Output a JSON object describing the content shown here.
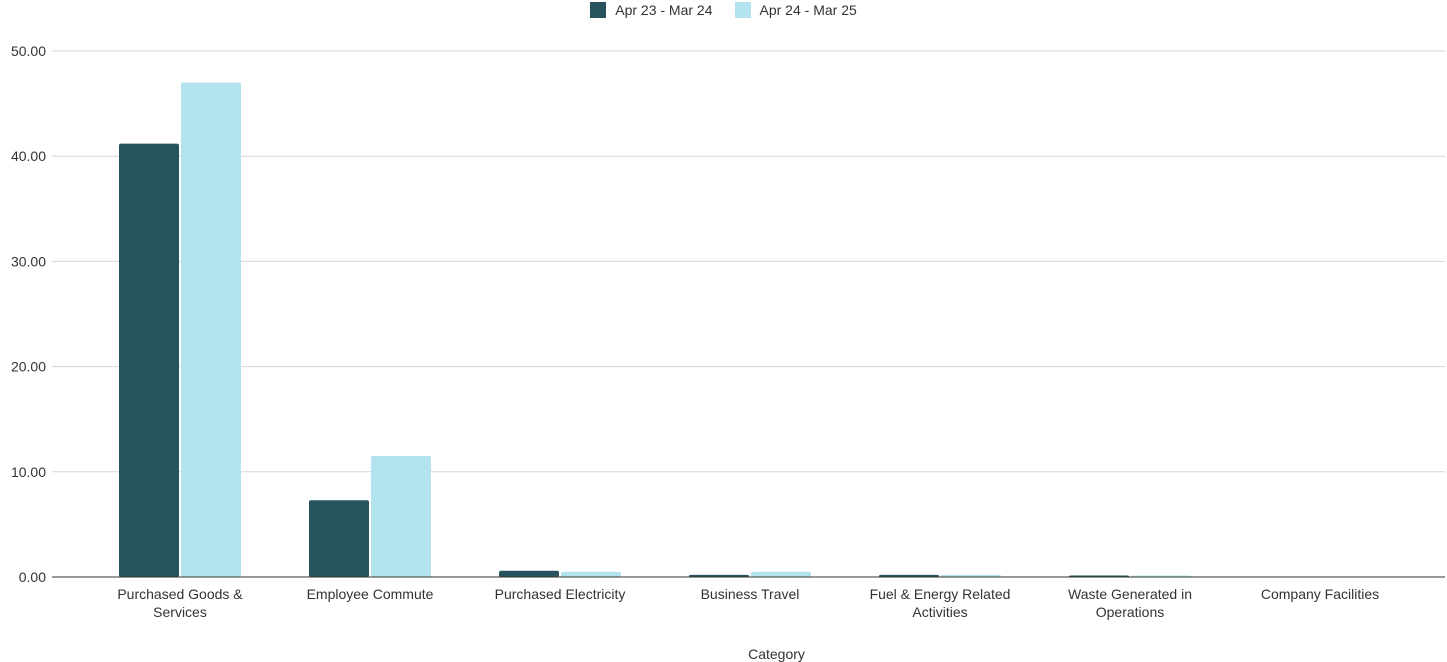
{
  "chart_data": {
    "type": "bar",
    "categories": [
      "Purchased Goods & Services",
      "Employee Commute",
      "Purchased Electricity",
      "Business Travel",
      "Fuel & Energy Related Activities",
      "Waste Generated in Operations",
      "Company Facilities"
    ],
    "category_lines": [
      [
        "Purchased Goods &",
        "Services"
      ],
      [
        "Employee Commute"
      ],
      [
        "Purchased Electricity"
      ],
      [
        "Business Travel"
      ],
      [
        "Fuel & Energy Related",
        "Activities"
      ],
      [
        "Waste Generated in",
        "Operations"
      ],
      [
        "Company Facilities"
      ]
    ],
    "series": [
      {
        "name": "Apr 23 - Mar 24",
        "color": "#27535e",
        "values": [
          41.2,
          7.3,
          0.6,
          0.2,
          0.2,
          0.05,
          0.0
        ]
      },
      {
        "name": "Apr 24 - Mar 25",
        "color": "#b3e3ef",
        "values": [
          47.0,
          11.5,
          0.5,
          0.5,
          0.2,
          0.05,
          0.0
        ]
      }
    ],
    "xlabel": "Category",
    "ylabel": "",
    "ylim": [
      0,
      50
    ],
    "yticks": [
      "0.00",
      "10.00",
      "20.00",
      "30.00",
      "40.00",
      "50.00"
    ],
    "grid": true,
    "legend_position": "top-center"
  }
}
